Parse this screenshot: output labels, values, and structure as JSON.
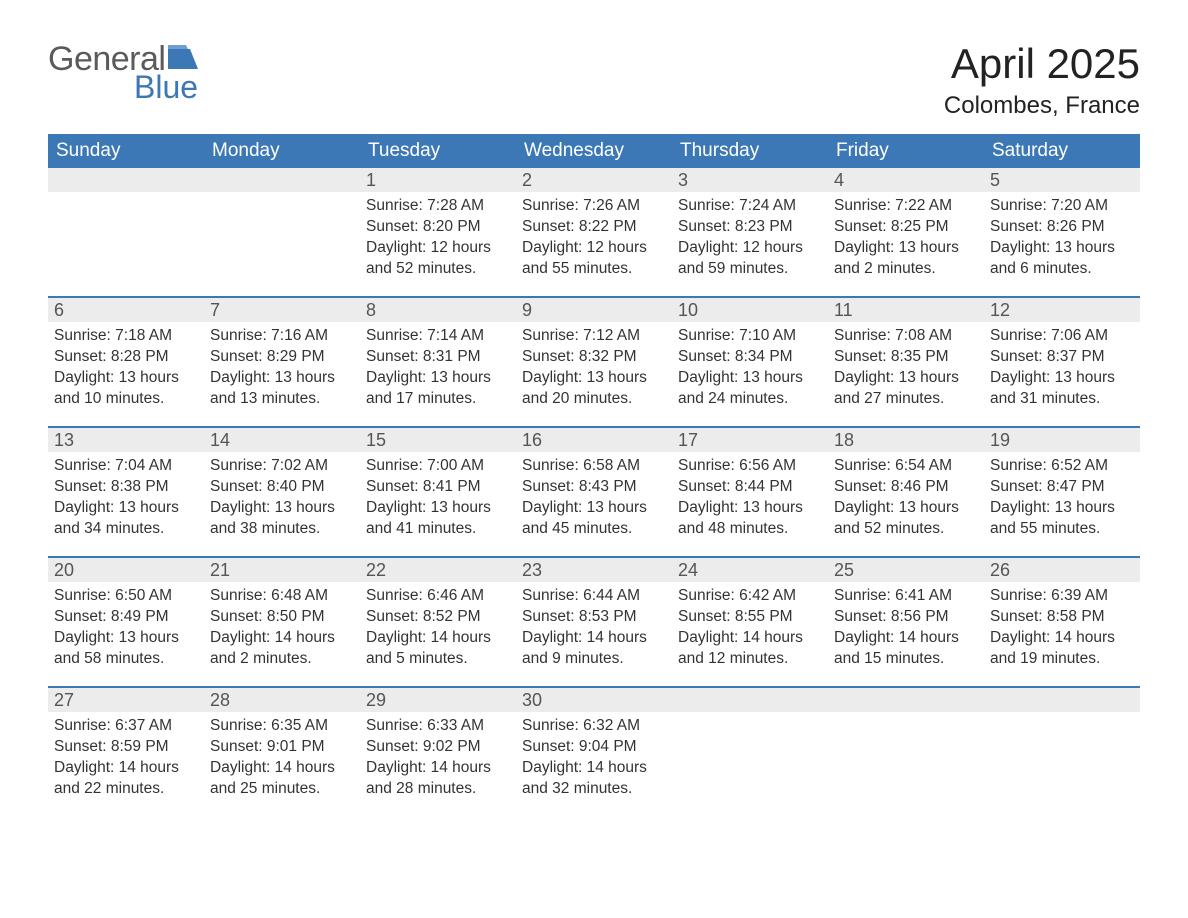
{
  "brand": {
    "word1": "General",
    "word2": "Blue",
    "flag_color": "#3b78b5"
  },
  "title": "April 2025",
  "location": "Colombes, France",
  "colors": {
    "header_bg": "#3b78b5",
    "header_text": "#ffffff",
    "daynum_bg": "#ececec",
    "daynum_text": "#555555",
    "body_text": "#333333",
    "week_border": "#3b78b5",
    "page_bg": "#ffffff"
  },
  "typography": {
    "title_fontsize": 42,
    "location_fontsize": 24,
    "header_fontsize": 19,
    "daynum_fontsize": 18,
    "body_fontsize": 15.5
  },
  "day_names": [
    "Sunday",
    "Monday",
    "Tuesday",
    "Wednesday",
    "Thursday",
    "Friday",
    "Saturday"
  ],
  "weeks": [
    [
      {
        "n": "",
        "sunrise": "",
        "sunset": "",
        "d1": "",
        "d2": ""
      },
      {
        "n": "",
        "sunrise": "",
        "sunset": "",
        "d1": "",
        "d2": ""
      },
      {
        "n": "1",
        "sunrise": "Sunrise: 7:28 AM",
        "sunset": "Sunset: 8:20 PM",
        "d1": "Daylight: 12 hours",
        "d2": "and 52 minutes."
      },
      {
        "n": "2",
        "sunrise": "Sunrise: 7:26 AM",
        "sunset": "Sunset: 8:22 PM",
        "d1": "Daylight: 12 hours",
        "d2": "and 55 minutes."
      },
      {
        "n": "3",
        "sunrise": "Sunrise: 7:24 AM",
        "sunset": "Sunset: 8:23 PM",
        "d1": "Daylight: 12 hours",
        "d2": "and 59 minutes."
      },
      {
        "n": "4",
        "sunrise": "Sunrise: 7:22 AM",
        "sunset": "Sunset: 8:25 PM",
        "d1": "Daylight: 13 hours",
        "d2": "and 2 minutes."
      },
      {
        "n": "5",
        "sunrise": "Sunrise: 7:20 AM",
        "sunset": "Sunset: 8:26 PM",
        "d1": "Daylight: 13 hours",
        "d2": "and 6 minutes."
      }
    ],
    [
      {
        "n": "6",
        "sunrise": "Sunrise: 7:18 AM",
        "sunset": "Sunset: 8:28 PM",
        "d1": "Daylight: 13 hours",
        "d2": "and 10 minutes."
      },
      {
        "n": "7",
        "sunrise": "Sunrise: 7:16 AM",
        "sunset": "Sunset: 8:29 PM",
        "d1": "Daylight: 13 hours",
        "d2": "and 13 minutes."
      },
      {
        "n": "8",
        "sunrise": "Sunrise: 7:14 AM",
        "sunset": "Sunset: 8:31 PM",
        "d1": "Daylight: 13 hours",
        "d2": "and 17 minutes."
      },
      {
        "n": "9",
        "sunrise": "Sunrise: 7:12 AM",
        "sunset": "Sunset: 8:32 PM",
        "d1": "Daylight: 13 hours",
        "d2": "and 20 minutes."
      },
      {
        "n": "10",
        "sunrise": "Sunrise: 7:10 AM",
        "sunset": "Sunset: 8:34 PM",
        "d1": "Daylight: 13 hours",
        "d2": "and 24 minutes."
      },
      {
        "n": "11",
        "sunrise": "Sunrise: 7:08 AM",
        "sunset": "Sunset: 8:35 PM",
        "d1": "Daylight: 13 hours",
        "d2": "and 27 minutes."
      },
      {
        "n": "12",
        "sunrise": "Sunrise: 7:06 AM",
        "sunset": "Sunset: 8:37 PM",
        "d1": "Daylight: 13 hours",
        "d2": "and 31 minutes."
      }
    ],
    [
      {
        "n": "13",
        "sunrise": "Sunrise: 7:04 AM",
        "sunset": "Sunset: 8:38 PM",
        "d1": "Daylight: 13 hours",
        "d2": "and 34 minutes."
      },
      {
        "n": "14",
        "sunrise": "Sunrise: 7:02 AM",
        "sunset": "Sunset: 8:40 PM",
        "d1": "Daylight: 13 hours",
        "d2": "and 38 minutes."
      },
      {
        "n": "15",
        "sunrise": "Sunrise: 7:00 AM",
        "sunset": "Sunset: 8:41 PM",
        "d1": "Daylight: 13 hours",
        "d2": "and 41 minutes."
      },
      {
        "n": "16",
        "sunrise": "Sunrise: 6:58 AM",
        "sunset": "Sunset: 8:43 PM",
        "d1": "Daylight: 13 hours",
        "d2": "and 45 minutes."
      },
      {
        "n": "17",
        "sunrise": "Sunrise: 6:56 AM",
        "sunset": "Sunset: 8:44 PM",
        "d1": "Daylight: 13 hours",
        "d2": "and 48 minutes."
      },
      {
        "n": "18",
        "sunrise": "Sunrise: 6:54 AM",
        "sunset": "Sunset: 8:46 PM",
        "d1": "Daylight: 13 hours",
        "d2": "and 52 minutes."
      },
      {
        "n": "19",
        "sunrise": "Sunrise: 6:52 AM",
        "sunset": "Sunset: 8:47 PM",
        "d1": "Daylight: 13 hours",
        "d2": "and 55 minutes."
      }
    ],
    [
      {
        "n": "20",
        "sunrise": "Sunrise: 6:50 AM",
        "sunset": "Sunset: 8:49 PM",
        "d1": "Daylight: 13 hours",
        "d2": "and 58 minutes."
      },
      {
        "n": "21",
        "sunrise": "Sunrise: 6:48 AM",
        "sunset": "Sunset: 8:50 PM",
        "d1": "Daylight: 14 hours",
        "d2": "and 2 minutes."
      },
      {
        "n": "22",
        "sunrise": "Sunrise: 6:46 AM",
        "sunset": "Sunset: 8:52 PM",
        "d1": "Daylight: 14 hours",
        "d2": "and 5 minutes."
      },
      {
        "n": "23",
        "sunrise": "Sunrise: 6:44 AM",
        "sunset": "Sunset: 8:53 PM",
        "d1": "Daylight: 14 hours",
        "d2": "and 9 minutes."
      },
      {
        "n": "24",
        "sunrise": "Sunrise: 6:42 AM",
        "sunset": "Sunset: 8:55 PM",
        "d1": "Daylight: 14 hours",
        "d2": "and 12 minutes."
      },
      {
        "n": "25",
        "sunrise": "Sunrise: 6:41 AM",
        "sunset": "Sunset: 8:56 PM",
        "d1": "Daylight: 14 hours",
        "d2": "and 15 minutes."
      },
      {
        "n": "26",
        "sunrise": "Sunrise: 6:39 AM",
        "sunset": "Sunset: 8:58 PM",
        "d1": "Daylight: 14 hours",
        "d2": "and 19 minutes."
      }
    ],
    [
      {
        "n": "27",
        "sunrise": "Sunrise: 6:37 AM",
        "sunset": "Sunset: 8:59 PM",
        "d1": "Daylight: 14 hours",
        "d2": "and 22 minutes."
      },
      {
        "n": "28",
        "sunrise": "Sunrise: 6:35 AM",
        "sunset": "Sunset: 9:01 PM",
        "d1": "Daylight: 14 hours",
        "d2": "and 25 minutes."
      },
      {
        "n": "29",
        "sunrise": "Sunrise: 6:33 AM",
        "sunset": "Sunset: 9:02 PM",
        "d1": "Daylight: 14 hours",
        "d2": "and 28 minutes."
      },
      {
        "n": "30",
        "sunrise": "Sunrise: 6:32 AM",
        "sunset": "Sunset: 9:04 PM",
        "d1": "Daylight: 14 hours",
        "d2": "and 32 minutes."
      },
      {
        "n": "",
        "sunrise": "",
        "sunset": "",
        "d1": "",
        "d2": ""
      },
      {
        "n": "",
        "sunrise": "",
        "sunset": "",
        "d1": "",
        "d2": ""
      },
      {
        "n": "",
        "sunrise": "",
        "sunset": "",
        "d1": "",
        "d2": ""
      }
    ]
  ]
}
